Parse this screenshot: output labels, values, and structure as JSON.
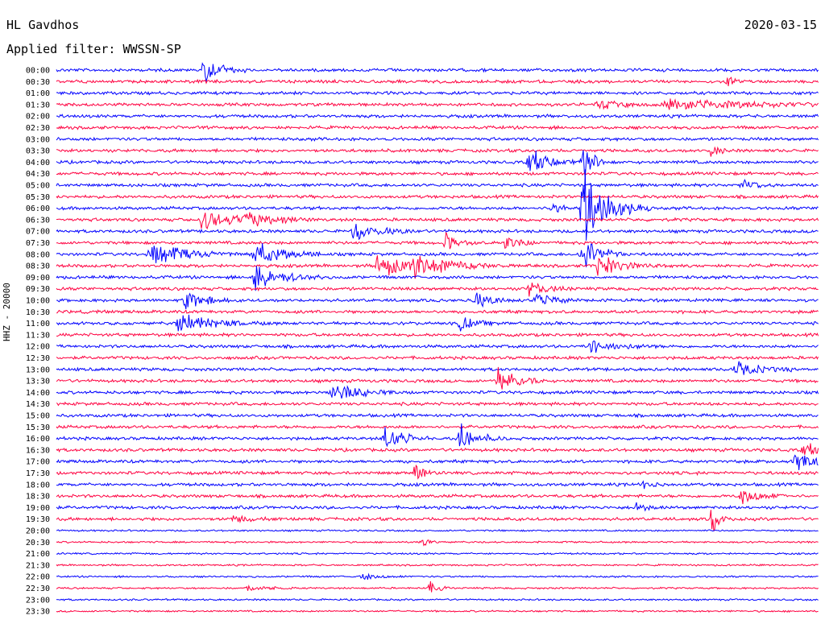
{
  "header": {
    "station": "HL Gavdhos",
    "date": "2020-03-15",
    "filter": "Applied filter: WWSSN-SP"
  },
  "chart_data": {
    "type": "line",
    "title": "HL Gavdhos",
    "subtitle": "Applied filter: WWSSN-SP",
    "ylabel": "HHZ - 20000",
    "xlabel": "",
    "grid": false,
    "legend": "none",
    "colors": [
      "#0000ff",
      "#ff0040"
    ],
    "row_labels": [
      "00:00",
      "00:30",
      "01:00",
      "01:30",
      "02:00",
      "02:30",
      "03:00",
      "03:30",
      "04:00",
      "04:30",
      "05:00",
      "05:30",
      "06:00",
      "06:30",
      "07:00",
      "07:30",
      "08:00",
      "08:30",
      "09:00",
      "09:30",
      "10:00",
      "10:30",
      "11:00",
      "11:30",
      "12:00",
      "12:30",
      "13:00",
      "13:30",
      "14:00",
      "14:30",
      "15:00",
      "15:30",
      "16:00",
      "16:30",
      "17:00",
      "17:30",
      "18:00",
      "18:30",
      "19:00",
      "19:30",
      "20:00",
      "20:30",
      "21:00",
      "21:30",
      "22:00",
      "22:30",
      "23:00",
      "23:30"
    ],
    "events": [
      {
        "row": 0,
        "x": 0.19,
        "amp": 2.2,
        "dur": 0.02
      },
      {
        "row": 1,
        "x": 0.88,
        "amp": 0.8,
        "dur": 0.01
      },
      {
        "row": 3,
        "x": 0.8,
        "amp": 0.7,
        "dur": 0.12
      },
      {
        "row": 3,
        "x": 0.71,
        "amp": 0.6,
        "dur": 0.03
      },
      {
        "row": 7,
        "x": 0.86,
        "amp": 1.0,
        "dur": 0.01
      },
      {
        "row": 8,
        "x": 0.62,
        "amp": 2.0,
        "dur": 0.02
      },
      {
        "row": 8,
        "x": 0.69,
        "amp": 4.0,
        "dur": 0.01
      },
      {
        "row": 10,
        "x": 0.9,
        "amp": 1.0,
        "dur": 0.015
      },
      {
        "row": 12,
        "x": 0.69,
        "amp": 6.0,
        "dur": 0.03
      },
      {
        "row": 12,
        "x": 0.65,
        "amp": 1.0,
        "dur": 0.01
      },
      {
        "row": 13,
        "x": 0.19,
        "amp": 1.4,
        "dur": 0.04
      },
      {
        "row": 13,
        "x": 0.25,
        "amp": 1.2,
        "dur": 0.03
      },
      {
        "row": 14,
        "x": 0.39,
        "amp": 1.2,
        "dur": 0.03
      },
      {
        "row": 15,
        "x": 0.51,
        "amp": 1.2,
        "dur": 0.015
      },
      {
        "row": 15,
        "x": 0.59,
        "amp": 1.2,
        "dur": 0.015
      },
      {
        "row": 16,
        "x": 0.12,
        "amp": 1.8,
        "dur": 0.04
      },
      {
        "row": 16,
        "x": 0.26,
        "amp": 2.0,
        "dur": 0.03
      },
      {
        "row": 16,
        "x": 0.69,
        "amp": 3.0,
        "dur": 0.02
      },
      {
        "row": 17,
        "x": 0.42,
        "amp": 1.5,
        "dur": 0.06
      },
      {
        "row": 17,
        "x": 0.47,
        "amp": 1.2,
        "dur": 0.03
      },
      {
        "row": 17,
        "x": 0.71,
        "amp": 1.5,
        "dur": 0.03
      },
      {
        "row": 18,
        "x": 0.26,
        "amp": 2.0,
        "dur": 0.03
      },
      {
        "row": 19,
        "x": 0.62,
        "amp": 1.2,
        "dur": 0.02
      },
      {
        "row": 20,
        "x": 0.17,
        "amp": 1.8,
        "dur": 0.02
      },
      {
        "row": 20,
        "x": 0.55,
        "amp": 1.0,
        "dur": 0.02
      },
      {
        "row": 20,
        "x": 0.63,
        "amp": 1.0,
        "dur": 0.02
      },
      {
        "row": 22,
        "x": 0.16,
        "amp": 1.4,
        "dur": 0.04
      },
      {
        "row": 22,
        "x": 0.53,
        "amp": 1.2,
        "dur": 0.015
      },
      {
        "row": 24,
        "x": 0.7,
        "amp": 1.0,
        "dur": 0.03
      },
      {
        "row": 26,
        "x": 0.89,
        "amp": 1.0,
        "dur": 0.03
      },
      {
        "row": 27,
        "x": 0.58,
        "amp": 2.0,
        "dur": 0.02
      },
      {
        "row": 28,
        "x": 0.36,
        "amp": 1.5,
        "dur": 0.03
      },
      {
        "row": 32,
        "x": 0.43,
        "amp": 2.0,
        "dur": 0.02
      },
      {
        "row": 32,
        "x": 0.53,
        "amp": 2.0,
        "dur": 0.02
      },
      {
        "row": 33,
        "x": 0.98,
        "amp": 1.0,
        "dur": 0.02
      },
      {
        "row": 34,
        "x": 0.97,
        "amp": 1.2,
        "dur": 0.04
      },
      {
        "row": 35,
        "x": 0.47,
        "amp": 1.4,
        "dur": 0.01
      },
      {
        "row": 36,
        "x": 0.77,
        "amp": 0.8,
        "dur": 0.01
      },
      {
        "row": 37,
        "x": 0.9,
        "amp": 1.2,
        "dur": 0.02
      },
      {
        "row": 38,
        "x": 0.76,
        "amp": 0.8,
        "dur": 0.01
      },
      {
        "row": 39,
        "x": 0.86,
        "amp": 2.0,
        "dur": 0.01
      },
      {
        "row": 39,
        "x": 0.23,
        "amp": 0.5,
        "dur": 0.02
      },
      {
        "row": 41,
        "x": 0.48,
        "amp": 0.5,
        "dur": 0.01
      },
      {
        "row": 44,
        "x": 0.4,
        "amp": 0.5,
        "dur": 0.02
      },
      {
        "row": 45,
        "x": 0.25,
        "amp": 0.6,
        "dur": 0.02
      },
      {
        "row": 45,
        "x": 0.49,
        "amp": 1.0,
        "dur": 0.01
      }
    ]
  }
}
